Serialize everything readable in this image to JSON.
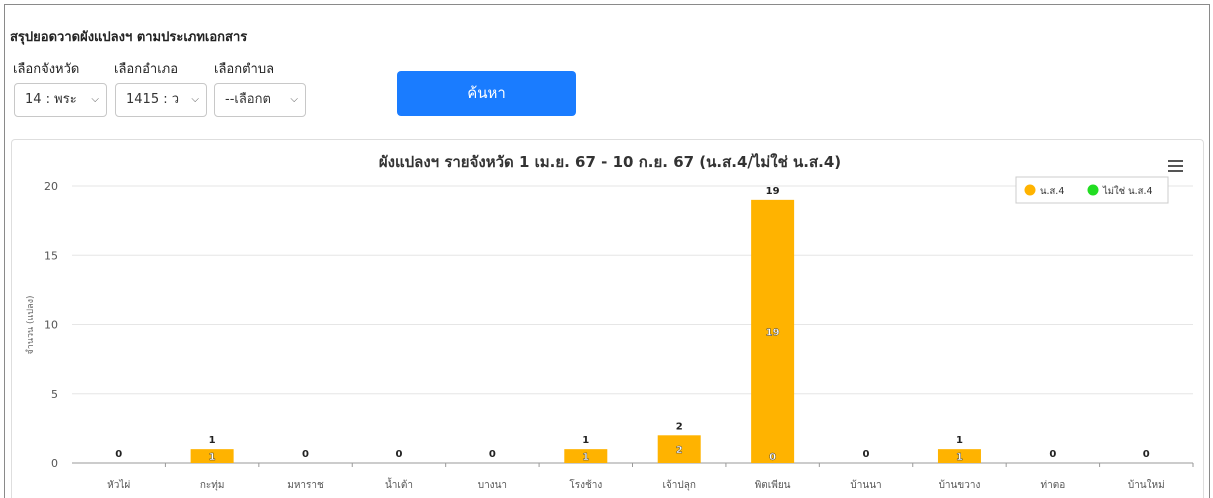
{
  "page": {
    "title": "สรุปยอดวาดผังแปลงฯ ตามประเภทเอกสาร",
    "filters": [
      {
        "label": "เลือกจังหวัด",
        "value": "14 : พระ"
      },
      {
        "label": "เลือกอำเภอ",
        "value": "1415 : ว"
      },
      {
        "label": "เลือกตำบล",
        "value": "--เลือกต"
      }
    ],
    "search_button": "ค้นหา"
  },
  "colors": {
    "series_ns4": "#ffb300",
    "series_not_ns4": "#22dd22",
    "button": "#1a7cff"
  },
  "icons": {
    "menu": "hamburger-icon",
    "dropdown": "chevron-down-icon"
  },
  "chart_data": {
    "type": "bar",
    "title": "ผังแปลงฯ รายจังหวัด 1 เม.ย. 67 - 10 ก.ย. 67 (น.ส.4/ไม่ใช่ น.ส.4)",
    "ylabel": "จำนวน (แปลง)",
    "xlabel": "",
    "ylim": [
      0,
      20
    ],
    "yticks": [
      0,
      5,
      10,
      15,
      20
    ],
    "grid": true,
    "legend_position": "top-right",
    "stacked": true,
    "categories": [
      "หัวไผ่",
      "กะทุ่ม",
      "มหาราช",
      "น้ำเต้า",
      "บางนา",
      "โรงช้าง",
      "เจ้าปลุก",
      "พิตเพียน",
      "บ้านนา",
      "บ้านขวาง",
      "ท่าตอ",
      "บ้านใหม่"
    ],
    "series": [
      {
        "name": "น.ส.4",
        "values": [
          0,
          1,
          0,
          0,
          0,
          1,
          2,
          19,
          0,
          1,
          0,
          0
        ]
      },
      {
        "name": "ไม่ใช่ น.ส.4",
        "values": [
          0,
          0,
          0,
          0,
          0,
          0,
          0,
          0,
          0,
          0,
          0,
          0
        ]
      }
    ],
    "totals": [
      0,
      1,
      0,
      0,
      0,
      1,
      2,
      19,
      0,
      1,
      0,
      0
    ]
  }
}
